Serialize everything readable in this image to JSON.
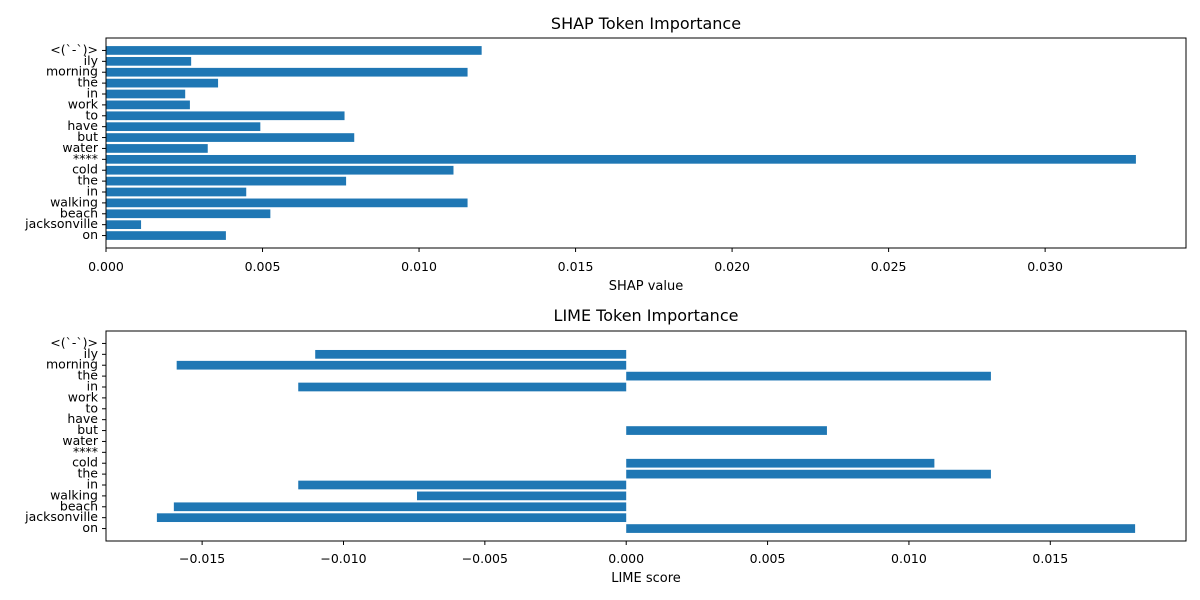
{
  "chart_data": [
    {
      "type": "bar",
      "orientation": "horizontal",
      "title": "SHAP Token Importance",
      "xlabel": "SHAP value",
      "ylabel": "",
      "xlim": [
        0,
        0.0345
      ],
      "xticks": [
        0,
        0.005,
        0.01,
        0.015,
        0.02,
        0.025,
        0.03
      ],
      "xtick_labels": [
        "0.000",
        "0.005",
        "0.010",
        "0.015",
        "0.020",
        "0.025",
        "0.030"
      ],
      "categories": [
        "<(`-`)>",
        "ily",
        "morning",
        "the",
        "in",
        "work",
        "to",
        "have",
        "but",
        "water",
        "****",
        "cold",
        "the",
        "in",
        "walking",
        "beach",
        "jacksonville",
        "on"
      ],
      "values": [
        0.012,
        0.00272,
        0.01155,
        0.00358,
        0.00253,
        0.00268,
        0.00762,
        0.00493,
        0.00793,
        0.00325,
        0.0329,
        0.0111,
        0.00767,
        0.00448,
        0.01155,
        0.00525,
        0.00112,
        0.00383
      ],
      "bar_color": "#1f77b4",
      "grid": false,
      "legend": false
    },
    {
      "type": "bar",
      "orientation": "horizontal",
      "title": "LIME Token Importance",
      "xlabel": "LIME score",
      "ylabel": "",
      "xlim": [
        -0.0184,
        0.0198
      ],
      "xticks": [
        -0.015,
        -0.01,
        -0.005,
        0,
        0.005,
        0.01,
        0.015
      ],
      "xtick_labels": [
        "−0.015",
        "−0.010",
        "−0.005",
        "0.000",
        "0.005",
        "0.010",
        "0.015"
      ],
      "categories": [
        "<(`-`)>",
        "ily",
        "morning",
        "the",
        "in",
        "work",
        "to",
        "have",
        "but",
        "water",
        "****",
        "cold",
        "the",
        "in",
        "walking",
        "beach",
        "jacksonville",
        "on"
      ],
      "values": [
        0,
        -0.011,
        -0.0159,
        0.0129,
        -0.0116,
        0,
        0,
        0,
        0.0071,
        0,
        0,
        0.0109,
        0.0129,
        -0.0116,
        -0.0074,
        -0.016,
        -0.0166,
        0.018
      ],
      "bar_color": "#1f77b4",
      "grid": false,
      "legend": false
    }
  ]
}
